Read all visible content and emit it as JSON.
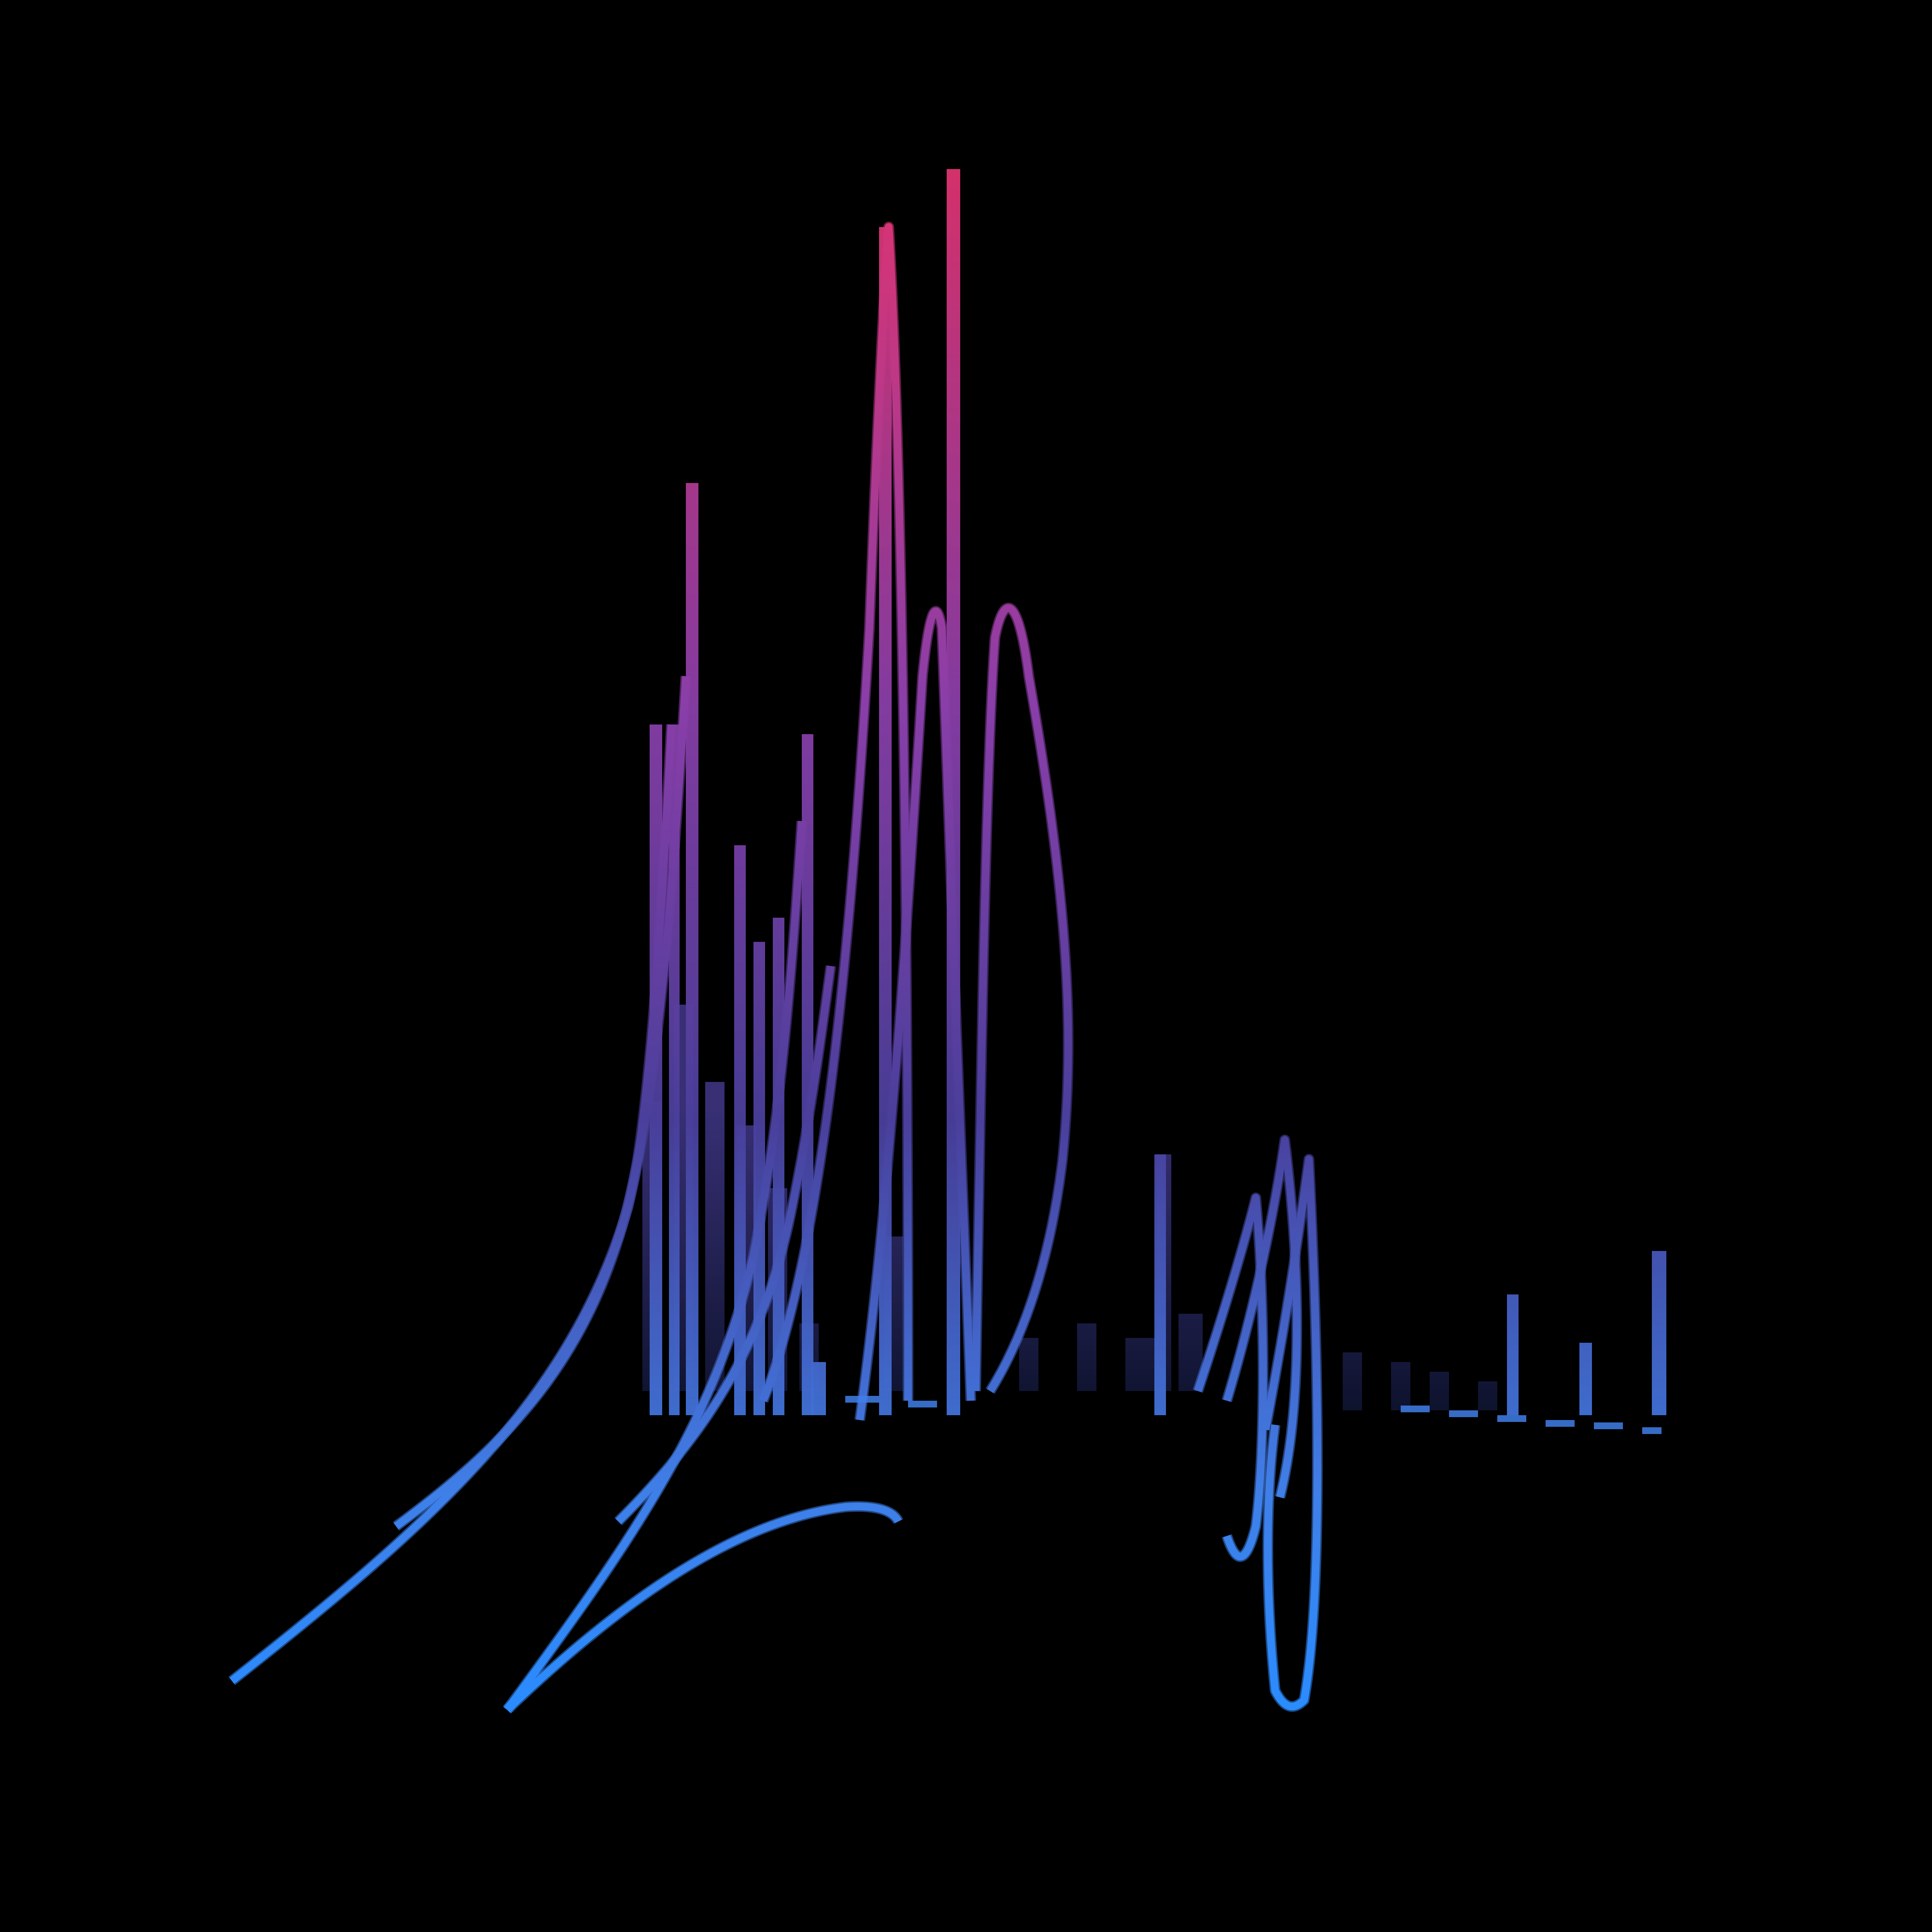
{
  "scene": {
    "background": "#000000",
    "subject": "abstract-3d-ribbon-waveform",
    "palette": {
      "peak": "#e0336f",
      "mid_high": "#8a3ea8",
      "mid": "#4a3f9c",
      "base": "#3f7fe8",
      "base_bright": "#2a8cff",
      "shadow": "#0b1430"
    }
  }
}
